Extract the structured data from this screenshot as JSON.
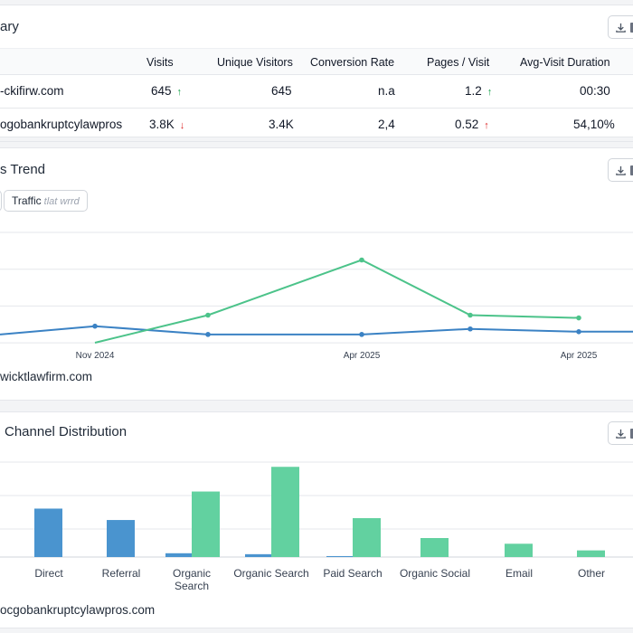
{
  "summary": {
    "title": "ary",
    "columns": [
      "Visits",
      "Unique Visitors",
      "Conversion Rate",
      "Pages / Visit",
      "Avg-Visit Duration"
    ],
    "rows": [
      {
        "site": "-ckifirw.com",
        "visits": "645",
        "visits_trend": "up",
        "unique": "645",
        "conversion": "n.a",
        "pages": "1.2",
        "pages_trend": "up",
        "duration": "00:30"
      },
      {
        "site": "ogobankruptcylawpros",
        "visits": "3.8K",
        "visits_trend": "down",
        "unique": "3.4K",
        "conversion": "2,4",
        "pages": "0.52",
        "pages_trend": "up-red",
        "duration": "54,10%"
      }
    ]
  },
  "trend": {
    "title": "s Trend",
    "chip_label": "Traffic",
    "chip_muted": "tlat wrrd",
    "caption": "wicktlawfirm.com",
    "colors": {
      "blue": "#3b82c4",
      "green": "#4cc38a",
      "grid": "#e5e7eb"
    }
  },
  "channels": {
    "title": "Channel Distribution",
    "caption": "ocgobankruptcylawpros.com",
    "colors": {
      "blue": "#4a94cf",
      "green": "#62d1a0"
    }
  },
  "chart_data": [
    {
      "type": "line",
      "title": "s Trend",
      "x": [
        0,
        1,
        2,
        3,
        4,
        5,
        6
      ],
      "xtick_labels": [
        "Nov 2024",
        "Apr 2025",
        "Apr 2025"
      ],
      "ylim": [
        0,
        4
      ],
      "grid": true,
      "series": [
        {
          "name": "blue",
          "values": [
            0.3,
            0.6,
            0.3,
            0.3,
            0.5,
            0.4,
            0.4
          ]
        },
        {
          "name": "green",
          "values": [
            null,
            0,
            1.0,
            3.0,
            1.0,
            0.9,
            null
          ]
        }
      ]
    },
    {
      "type": "bar",
      "title": "Channel Distribution",
      "categories": [
        "Direct",
        "Referral",
        "Organic Search",
        "Organic Search",
        "Paid Search",
        "Organic Social",
        "Email",
        "Other"
      ],
      "ylim": [
        0,
        100
      ],
      "grid": true,
      "series": [
        {
          "name": "blue",
          "values": [
            51,
            39,
            4,
            3,
            1,
            0,
            0,
            0
          ]
        },
        {
          "name": "green",
          "values": [
            0,
            0,
            69,
            95,
            41,
            20,
            14,
            7
          ]
        }
      ]
    }
  ]
}
